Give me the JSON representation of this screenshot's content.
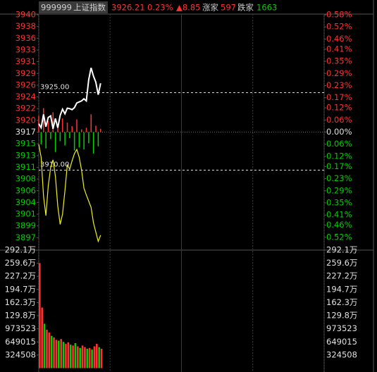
{
  "header": {
    "code": "999999",
    "name": "上证指数",
    "price": "3926.21",
    "change_pct": "0.23%",
    "change": "▲8.85",
    "up_label": "涨家",
    "up_count": "597",
    "down_label": "跌家",
    "down_count": "1663"
  },
  "chart_data": [
    {
      "type": "line",
      "up_color": "#ff3232",
      "down_color": "#00d000",
      "flat_color": "#e0e0e0",
      "grid": true,
      "xlim": [
        0,
        240
      ],
      "xticks": [
        0,
        60,
        120,
        180,
        240
      ],
      "ylim": [
        3894.66,
        3940.06
      ],
      "yticks": [
        {
          "value": 3940.06,
          "label": "3940"
        },
        {
          "value": 3937.79,
          "label": "3938"
        },
        {
          "value": 3935.52,
          "label": "3936"
        },
        {
          "value": 3933.25,
          "label": "3933"
        },
        {
          "value": 3930.98,
          "label": "3931"
        },
        {
          "value": 3928.71,
          "label": "3929"
        },
        {
          "value": 3926.44,
          "label": "3926"
        },
        {
          "value": 3924.17,
          "label": "3924"
        },
        {
          "value": 3921.9,
          "label": "3922"
        },
        {
          "value": 3919.63,
          "label": "3920"
        },
        {
          "value": 3917.36,
          "label": "3917"
        },
        {
          "value": 3915.09,
          "label": "3915"
        },
        {
          "value": 3912.82,
          "label": "3913"
        },
        {
          "value": 3910.55,
          "label": "3911"
        },
        {
          "value": 3908.28,
          "label": "3908"
        },
        {
          "value": 3906.01,
          "label": "3906"
        },
        {
          "value": 3903.74,
          "label": "3904"
        },
        {
          "value": 3901.47,
          "label": "3901"
        },
        {
          "value": 3899.2,
          "label": "3899"
        },
        {
          "value": 3896.93,
          "label": "3897"
        }
      ],
      "y2lim": [
        -0.58,
        0.58
      ],
      "y2ticks": [
        {
          "value": 0.58,
          "label": "0.58%"
        },
        {
          "value": 0.52,
          "label": "0.52%"
        },
        {
          "value": 0.46,
          "label": "0.46%"
        },
        {
          "value": 0.41,
          "label": "0.41%"
        },
        {
          "value": 0.35,
          "label": "0.35%"
        },
        {
          "value": 0.29,
          "label": "0.29%"
        },
        {
          "value": 0.23,
          "label": "0.23%"
        },
        {
          "value": 0.17,
          "label": "0.17%"
        },
        {
          "value": 0.12,
          "label": "0.12%"
        },
        {
          "value": 0.06,
          "label": "0.06%"
        },
        {
          "value": 0,
          "label": "0.00%"
        },
        {
          "value": -0.06,
          "label": "0.06%"
        },
        {
          "value": -0.12,
          "label": "0.12%"
        },
        {
          "value": -0.17,
          "label": "0.17%"
        },
        {
          "value": -0.23,
          "label": "0.23%"
        },
        {
          "value": -0.29,
          "label": "0.29%"
        },
        {
          "value": -0.35,
          "label": "0.35%"
        },
        {
          "value": -0.41,
          "label": "0.41%"
        },
        {
          "value": -0.46,
          "label": "0.46%"
        },
        {
          "value": -0.52,
          "label": "0.52%"
        }
      ],
      "annotations": [
        {
          "value": 3925,
          "label": "3925.00"
        },
        {
          "value": 3910,
          "label": "3910.00"
        }
      ],
      "x": [
        0,
        2,
        4,
        6,
        8,
        10,
        12,
        14,
        16,
        18,
        20,
        22,
        24,
        26,
        28,
        30,
        32,
        34,
        36,
        38,
        40,
        42,
        44,
        46,
        48,
        50,
        52
      ],
      "series": [
        {
          "type": "bar",
          "values": [
            3920.5,
            3915.0,
            3922.0,
            3914.2,
            3919.5,
            3916.0,
            3921.2,
            3913.5,
            3918.8,
            3915.6,
            3920.0,
            3914.8,
            3919.2,
            3916.2,
            3918.5,
            3913.8,
            3919.8,
            3914.4,
            3917.9,
            3914.0,
            3918.2,
            3915.2,
            3920.8,
            3913.2,
            3918.6,
            3914.6,
            3918.0
          ]
        },
        {
          "type": "line",
          "color": "#f0f020",
          "values": [
            3915.0,
            3912.5,
            3905.0,
            3901.2,
            3907.0,
            3910.5,
            3912.0,
            3908.8,
            3903.0,
            3899.5,
            3901.5,
            3906.0,
            3911.0,
            3910.2,
            3911.8,
            3913.2,
            3914.0,
            3912.5,
            3910.0,
            3906.5,
            3905.2,
            3904.0,
            3902.8,
            3899.8,
            3898.0,
            3896.2,
            3897.4
          ]
        },
        {
          "type": "line",
          "color": "#ffffff",
          "values": [
            3919.0,
            3918.2,
            3920.8,
            3918.4,
            3920.2,
            3920.5,
            3918.0,
            3920.0,
            3918.2,
            3920.6,
            3921.8,
            3920.9,
            3922.0,
            3921.9,
            3921.7,
            3922.1,
            3923.0,
            3923.2,
            3923.4,
            3923.8,
            3923.4,
            3927.5,
            3929.8,
            3928.2,
            3927.0,
            3924.6,
            3926.8
          ]
        }
      ]
    },
    {
      "type": "bar",
      "xlim": [
        0,
        240
      ],
      "ylim": [
        0,
        2921000
      ],
      "yticks": [
        {
          "value": 2921000,
          "label": "292.1万"
        },
        {
          "value": 2596000,
          "label": "259.6万"
        },
        {
          "value": 2272000,
          "label": "227.2万"
        },
        {
          "value": 1947000,
          "label": "194.7万"
        },
        {
          "value": 1623000,
          "label": "162.3万"
        },
        {
          "value": 1298000,
          "label": "129.8万"
        },
        973523,
        649015,
        324508
      ],
      "x": [
        0,
        2,
        4,
        6,
        8,
        10,
        12,
        14,
        16,
        18,
        20,
        22,
        24,
        26,
        28,
        30,
        32,
        34,
        36,
        38,
        40,
        42,
        44,
        46,
        48,
        50,
        52
      ],
      "values": [
        2600000,
        1500000,
        1100000,
        950000,
        880000,
        800000,
        760000,
        700000,
        680000,
        720000,
        650000,
        600000,
        640000,
        580000,
        560000,
        620000,
        540000,
        500000,
        560000,
        520000,
        480000,
        500000,
        460000,
        540000,
        600000,
        520000,
        480000
      ],
      "colors": [
        "#ff3232",
        "#ff3232",
        "#00d000",
        "#ff3232",
        "#ff3232",
        "#00d000",
        "#ff3232",
        "#ff3232",
        "#00d000",
        "#ff3232",
        "#00d000",
        "#ff3232",
        "#ff3232",
        "#00d000",
        "#ff3232",
        "#00d000",
        "#ff3232",
        "#00d000",
        "#ff3232",
        "#ff3232",
        "#00d000",
        "#ff3232",
        "#00d000",
        "#ff3232",
        "#ff3232",
        "#00d000",
        "#ff3232"
      ]
    }
  ]
}
